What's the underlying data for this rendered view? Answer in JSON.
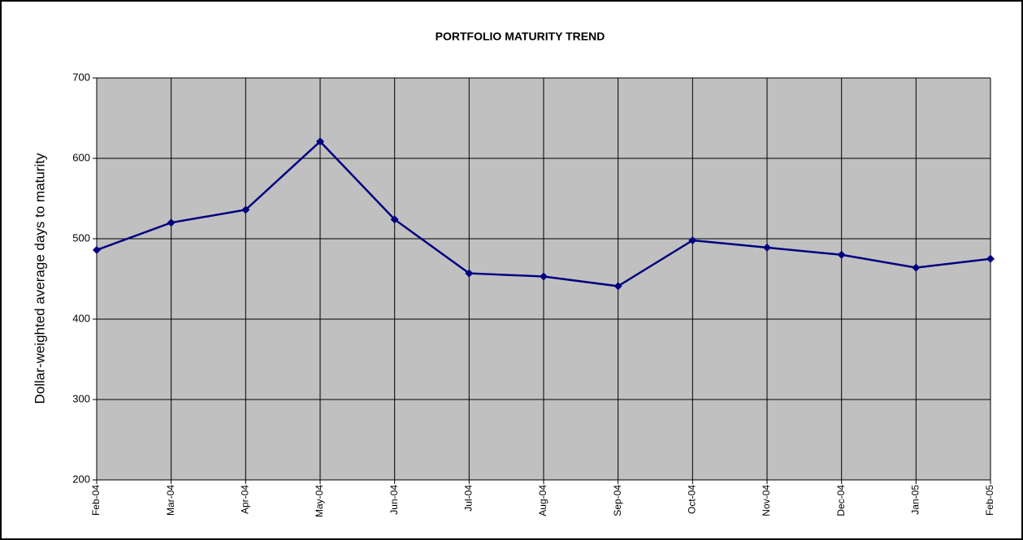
{
  "chart_data": {
    "type": "line",
    "title": "PORTFOLIO MATURITY TREND",
    "y_label": "Dollar-weighted average days to maturity",
    "categories": [
      "Feb-04",
      "Mar-04",
      "Apr-04",
      "May-04",
      "Jun-04",
      "Jul-04",
      "Aug-04",
      "Sep-04",
      "Oct-04",
      "Nov-04",
      "Dec-04",
      "Jan-05",
      "Feb-05"
    ],
    "values": [
      486,
      520,
      536,
      621,
      524,
      457,
      453,
      441,
      498,
      489,
      480,
      464,
      475
    ],
    "color": "#000080",
    "plot_background": "#c0c0c0",
    "ylim": [
      200,
      700
    ],
    "yticks": [
      200,
      300,
      400,
      500,
      600,
      700
    ],
    "grid": true
  }
}
